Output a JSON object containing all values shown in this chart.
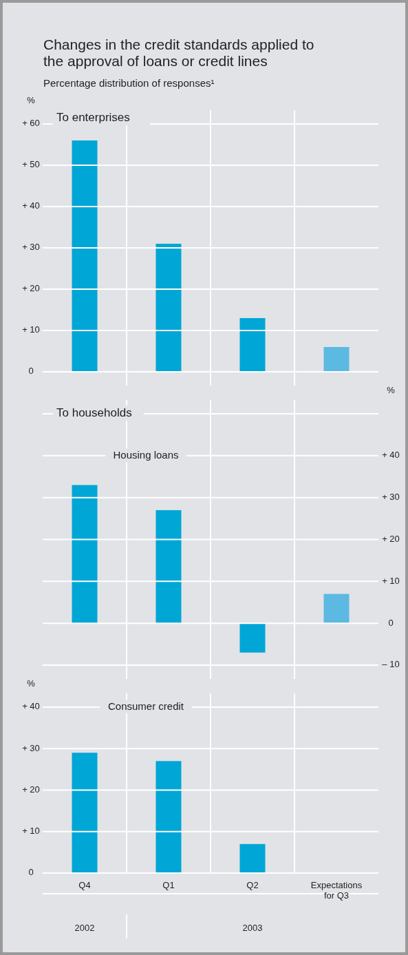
{
  "chart_data": [
    {
      "type": "bar",
      "title": "Changes in the credit standards applied to the approval of loans or credit lines",
      "subtitle": "Percentage distribution of responses¹",
      "ylabel": "%",
      "annotations": [
        "To enterprises"
      ],
      "categories": [
        null,
        null,
        null,
        null
      ],
      "values": [
        56,
        31,
        13,
        6
      ],
      "colors": [
        "#00a6d6",
        "#00a6d6",
        "#00a6d6",
        "#5cb9e2"
      ],
      "ylim": [
        0,
        60
      ],
      "yticks": [
        {
          "value": 60,
          "label": "+ 60"
        },
        {
          "value": 50,
          "label": "+ 50"
        },
        {
          "value": 40,
          "label": "+ 40"
        },
        {
          "value": 30,
          "label": "+ 30"
        },
        {
          "value": 20,
          "label": "+ 20"
        },
        {
          "value": 10,
          "label": "+ 10"
        },
        0
      ],
      "grid": true,
      "tick_labels": "y"
    },
    {
      "type": "bar",
      "title": "Housing loans",
      "y2label": "%",
      "annotations": [
        "To households"
      ],
      "categories": [
        null,
        null,
        null,
        null
      ],
      "series": [
        {
          "axis": "y2",
          "values": [
            33,
            27,
            -7,
            7
          ],
          "colors": [
            "#00a6d6",
            "#00a6d6",
            "#00a6d6",
            "#5cb9e2"
          ]
        }
      ],
      "y2lim": [
        -10,
        50
      ],
      "y2ticks": [
        {
          "value": 40,
          "label": "+ 40"
        },
        {
          "value": 30,
          "label": "+ 30"
        },
        {
          "value": 20,
          "label": "+ 20"
        },
        {
          "value": 10,
          "label": "+ 10"
        },
        0,
        {
          "value": -10,
          "label": "– 10"
        }
      ],
      "grid": true,
      "tick_labels": "y"
    },
    {
      "type": "bar",
      "title": "Consumer credit",
      "ylabel": "%",
      "annotations": [
        "2002",
        "2003"
      ],
      "categories": [
        "Q4",
        "Q1",
        "Q2",
        "Expectations for Q3"
      ],
      "values": [
        29,
        27,
        7,
        0
      ],
      "colors": [
        "#00a6d6",
        "#00a6d6",
        "#00a6d6",
        "#5cb9e2"
      ],
      "ylim": [
        0,
        40
      ],
      "yticks": [
        {
          "value": 40,
          "label": "+ 40"
        },
        {
          "value": 30,
          "label": "+ 30"
        },
        {
          "value": 20,
          "label": "+ 20"
        },
        {
          "value": 10,
          "label": "+ 10"
        },
        0
      ],
      "grid": true
    }
  ]
}
